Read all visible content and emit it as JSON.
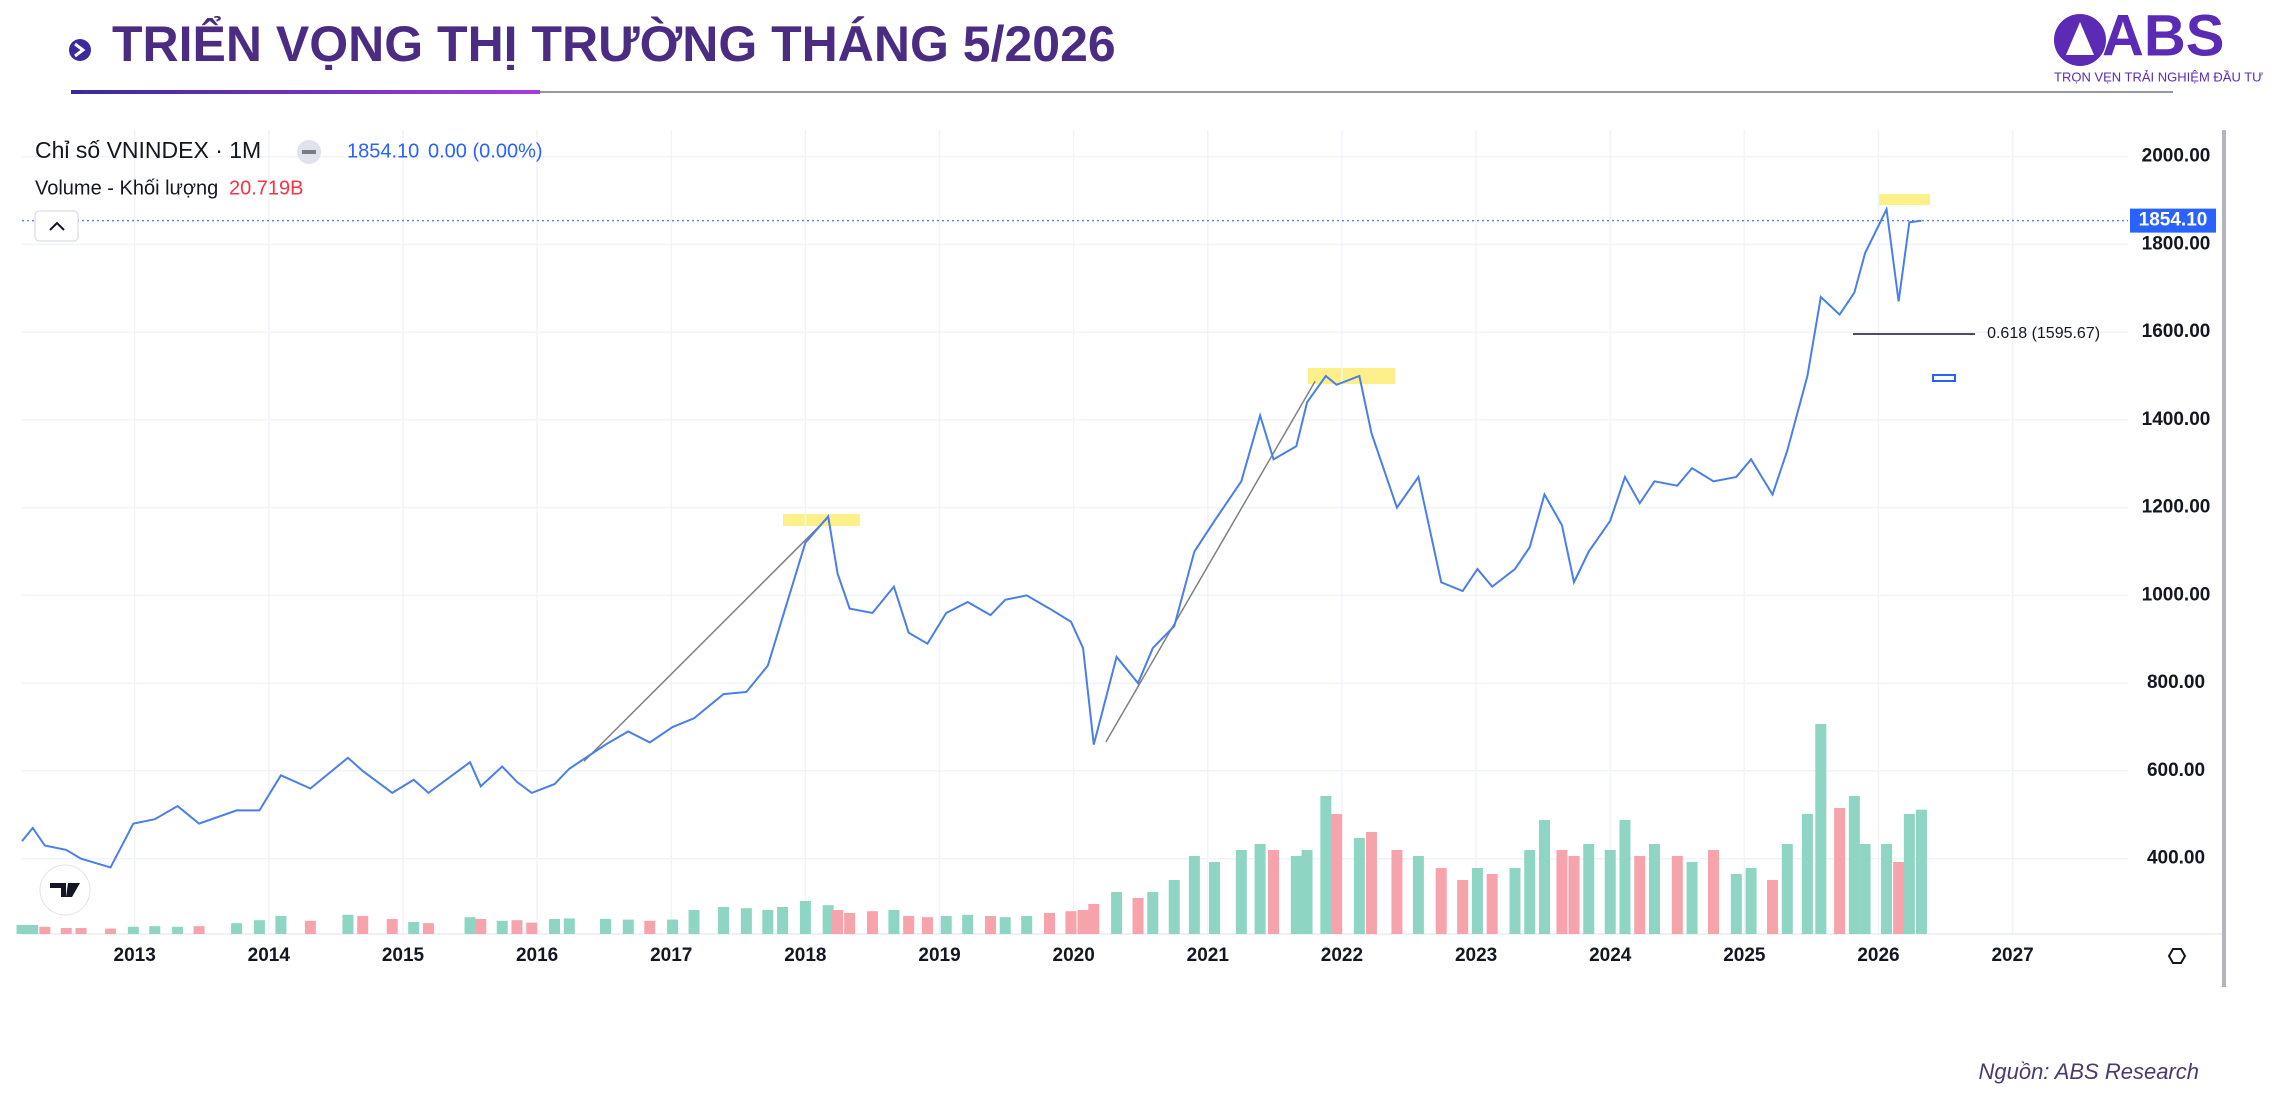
{
  "header": {
    "title": "TRIỂN VỌNG THỊ TRƯỜNG THÁNG 5/2026",
    "logo": "ABS",
    "tagline": "TRỌN VẸN TRẢI NGHIỆM ĐẦU TƯ",
    "source": "Nguồn: ABS Research"
  },
  "chart_data": {
    "type": "line",
    "x": [
      2012.16,
      2012.24,
      2012.33,
      2012.49,
      2012.6,
      2012.82,
      2012.99,
      2013.15,
      2013.32,
      2013.48,
      2013.76,
      2013.93,
      2014.09,
      2014.31,
      2014.59,
      2014.7,
      2014.92,
      2015.08,
      2015.19,
      2015.5,
      2015.58,
      2015.74,
      2015.85,
      2015.96,
      2016.13,
      2016.24,
      2016.51,
      2016.68,
      2016.84,
      2017.01,
      2017.17,
      2017.39,
      2017.56,
      2017.72,
      2017.83,
      2018,
      2018.17,
      2018.24,
      2018.33,
      2018.5,
      2018.66,
      2018.77,
      2018.91,
      2019.05,
      2019.21,
      2019.38,
      2019.49,
      2019.65,
      2019.82,
      2019.98,
      2020.07,
      2020.15,
      2020.32,
      2020.48,
      2020.59,
      2020.75,
      2020.9,
      2021.05,
      2021.25,
      2021.39,
      2021.49,
      2021.66,
      2021.74,
      2021.88,
      2021.96,
      2022.13,
      2022.22,
      2022.41,
      2022.57,
      2022.74,
      2022.9,
      2023.01,
      2023.12,
      2023.29,
      2023.4,
      2023.51,
      2023.64,
      2023.73,
      2023.84,
      2024,
      2024.11,
      2024.22,
      2024.33,
      2024.5,
      2024.61,
      2024.77,
      2024.94,
      2025.05,
      2025.21,
      2025.32,
      2025.47,
      2025.57,
      2025.71,
      2025.82,
      2025.9,
      2026.06,
      2026.15,
      2026.23,
      2026.32
    ],
    "series": [
      {
        "name": "Chỉ số VNINDEX · 1M",
        "color": "#4a7ee8",
        "last_label": "1854.10",
        "change_label": "0.00 (0.00%)",
        "values": [
          440,
          470,
          430,
          420,
          400,
          380,
          480,
          490,
          520,
          480,
          510,
          510,
          590,
          560,
          630,
          600,
          550,
          580,
          550,
          620,
          565,
          610,
          575,
          550,
          570,
          605,
          660,
          690,
          665,
          700,
          720,
          775,
          780,
          840,
          950,
          1120,
          1180,
          1050,
          970,
          960,
          1020,
          915,
          890,
          960,
          985,
          955,
          990,
          1000,
          970,
          940,
          880,
          660,
          860,
          800,
          880,
          930,
          1100,
          1170,
          1260,
          1410,
          1310,
          1340,
          1440,
          1500,
          1480,
          1500,
          1370,
          1200,
          1270,
          1030,
          1010,
          1060,
          1020,
          1060,
          1110,
          1230,
          1160,
          1030,
          1100,
          1170,
          1270,
          1210,
          1260,
          1250,
          1290,
          1260,
          1270,
          1310,
          1230,
          1330,
          1500,
          1680,
          1640,
          1690,
          1780,
          1880,
          1670,
          1850,
          1854.1
        ]
      },
      {
        "name": "Volume - Khối lượng",
        "type": "bar",
        "axis": "y2",
        "up_color": "#8fd5c3",
        "down_color": "#f7a3ab",
        "last_label": "20.719B",
        "values": [
          1.5,
          1.5,
          1.2,
          1.0,
          1.0,
          0.9,
          1.2,
          1.3,
          1.2,
          1.3,
          1.8,
          2.3,
          3.0,
          2.2,
          3.2,
          3.0,
          2.5,
          2.0,
          1.8,
          2.8,
          2.5,
          2.2,
          2.3,
          1.9,
          2.5,
          2.6,
          2.5,
          2.4,
          2.2,
          2.4,
          4.0,
          4.5,
          4.3,
          4.0,
          4.5,
          5.5,
          4.8,
          4.0,
          3.5,
          3.8,
          4.0,
          3.0,
          2.8,
          3.0,
          3.2,
          3.0,
          2.8,
          3.0,
          3.5,
          3.8,
          4.0,
          5.0,
          7.0,
          6.0,
          7.0,
          9.0,
          13,
          12,
          14,
          15,
          14,
          13,
          14,
          23,
          20,
          16,
          17,
          14,
          13,
          11,
          9,
          11,
          10,
          11,
          14,
          19,
          14,
          13,
          15,
          14,
          19,
          13,
          15,
          13,
          12,
          14,
          10,
          11,
          9,
          15,
          20,
          35,
          21,
          23,
          15,
          15,
          12,
          20,
          20.719
        ]
      }
    ],
    "xlim": [
      2012.16,
      2027.86
    ],
    "xticks": [
      2013,
      2014,
      2015,
      2016,
      2017,
      2018,
      2019,
      2020,
      2021,
      2022,
      2023,
      2024,
      2025,
      2026,
      2027
    ],
    "ylim": [
      228.4,
      2060.6
    ],
    "yticks": [
      {
        "value": 400,
        "label": "400.00"
      },
      {
        "value": 600,
        "label": "600.00"
      },
      {
        "value": 800,
        "label": "800.00"
      },
      {
        "value": 1000,
        "label": "1000.00"
      },
      {
        "value": 1200,
        "label": "1200.00"
      },
      {
        "value": 1400,
        "label": "1400.00"
      },
      {
        "value": 1600,
        "label": "1600.00"
      },
      {
        "value": 1800,
        "label": "1800.00"
      },
      {
        "value": 2000,
        "label": "2000.00"
      }
    ],
    "y2lim": [
      0,
      134
    ],
    "grid": true,
    "annotations": [
      {
        "label": "0.618 (1595.67)",
        "value": 1595.67,
        "x": [
          2025.81,
          2026.72
        ]
      }
    ],
    "trendlines": [
      {
        "x": [
          2016.35,
          2018.17
        ],
        "y": [
          622,
          1178
        ]
      },
      {
        "x": [
          2020.24,
          2021.8
        ],
        "y": [
          666,
          1488
        ]
      }
    ]
  }
}
